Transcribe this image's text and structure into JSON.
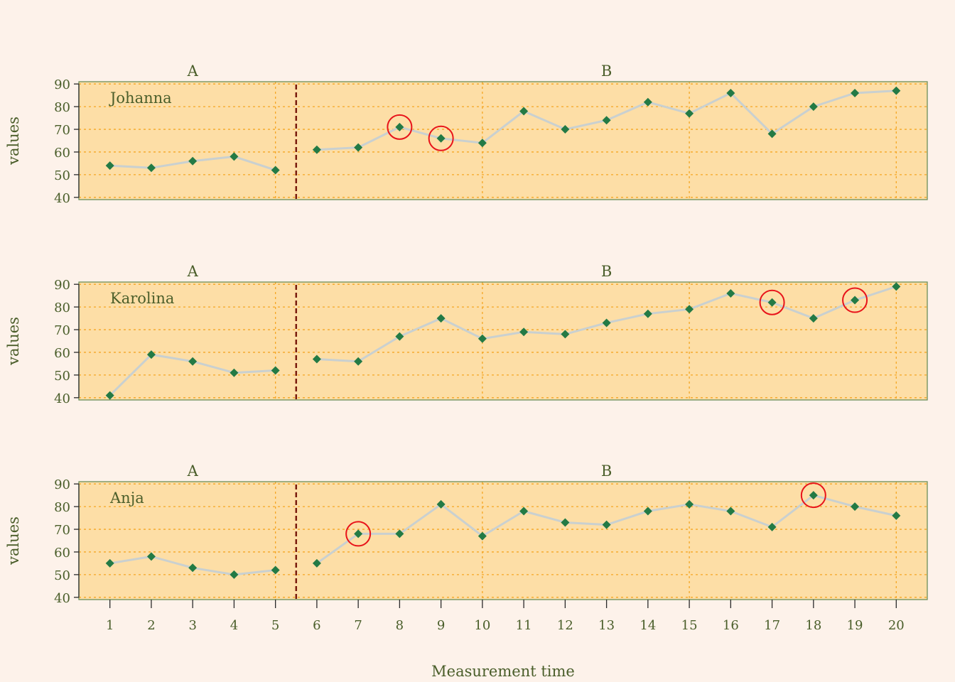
{
  "chart_data": {
    "type": "line",
    "xlabel": "Measurement time",
    "ylabel": "values",
    "x": [
      1,
      2,
      3,
      4,
      5,
      6,
      7,
      8,
      9,
      10,
      11,
      12,
      13,
      14,
      15,
      16,
      17,
      18,
      19,
      20
    ],
    "xlim": [
      0.25,
      20.75
    ],
    "ylim": [
      39,
      91
    ],
    "yticks": [
      40,
      50,
      60,
      70,
      80,
      90
    ],
    "phase_change_after": 5.5,
    "phases": [
      {
        "label": "A",
        "center": 3
      },
      {
        "label": "B",
        "center": 13
      }
    ],
    "grid": {
      "vertical": [
        5,
        10,
        15,
        20
      ],
      "horizontal": [
        40,
        50,
        60,
        70,
        80,
        90
      ]
    },
    "colors": {
      "panel_bg": "#fddea6",
      "panel_border": "#6b8e5a",
      "grid": "#f5a623",
      "line": "#c9d0d0",
      "marker": "#237a45",
      "highlight": "#e8131a",
      "phase_line": "#7a1c0e",
      "text": "#4a5e2a",
      "page_bg": "#fdf2ea"
    },
    "panels": [
      {
        "name": "Johanna",
        "values": [
          54,
          53,
          56,
          58,
          52,
          61,
          62,
          71,
          66,
          64,
          78,
          70,
          74,
          82,
          77,
          86,
          68,
          80,
          86,
          87
        ],
        "highlighted_x": [
          8,
          9
        ]
      },
      {
        "name": "Karolina",
        "values": [
          41,
          59,
          56,
          51,
          52,
          57,
          56,
          67,
          75,
          66,
          69,
          68,
          73,
          77,
          79,
          86,
          82,
          75,
          83,
          89
        ],
        "highlighted_x": [
          17,
          19
        ]
      },
      {
        "name": "Anja",
        "values": [
          55,
          58,
          53,
          50,
          52,
          55,
          68,
          68,
          81,
          67,
          78,
          73,
          72,
          78,
          81,
          78,
          71,
          85,
          80,
          76
        ],
        "highlighted_x": [
          7,
          18
        ]
      }
    ]
  }
}
